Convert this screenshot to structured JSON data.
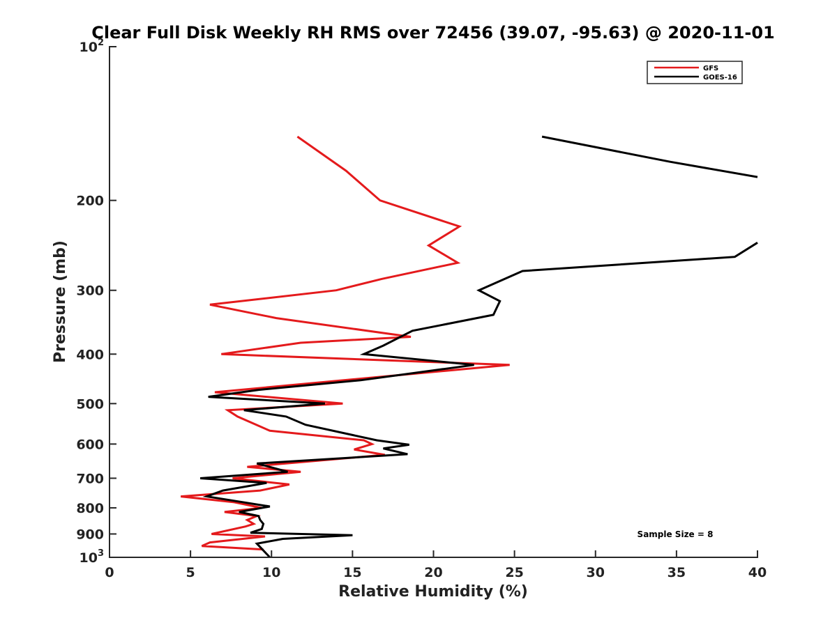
{
  "chart_data": {
    "type": "line",
    "title": "Clear Full Disk Weekly RH RMS over 72456 (39.07, -95.63) @ 2020-11-01",
    "xlabel": "Relative Humidity (%)",
    "ylabel": "Pressure (mb)",
    "xlim": [
      0,
      40
    ],
    "ylim": [
      100,
      1000
    ],
    "yscale": "log",
    "y_reversed": true,
    "x_ticks": [
      {
        "value": 0,
        "label": "0"
      },
      {
        "value": 5,
        "label": "5"
      },
      {
        "value": 10,
        "label": "10"
      },
      {
        "value": 15,
        "label": "15"
      },
      {
        "value": 20,
        "label": "20"
      },
      {
        "value": 25,
        "label": "25"
      },
      {
        "value": 30,
        "label": "30"
      },
      {
        "value": 35,
        "label": "35"
      },
      {
        "value": 40,
        "label": "40"
      }
    ],
    "y_ticks": [
      {
        "value": 100,
        "label": "10",
        "exp": "2"
      },
      {
        "value": 200,
        "label": "200"
      },
      {
        "value": 300,
        "label": "300"
      },
      {
        "value": 400,
        "label": "400"
      },
      {
        "value": 500,
        "label": "500"
      },
      {
        "value": 600,
        "label": "600"
      },
      {
        "value": 700,
        "label": "700"
      },
      {
        "value": 800,
        "label": "800"
      },
      {
        "value": 900,
        "label": "900"
      },
      {
        "value": 1000,
        "label": "10",
        "exp": "3"
      }
    ],
    "legend_position": "top-right",
    "series": [
      {
        "name": "GFS",
        "color": "#e41a1c",
        "points": [
          [
            11.6,
            150
          ],
          [
            14.6,
            175
          ],
          [
            16.7,
            200
          ],
          [
            21.6,
            225
          ],
          [
            19.7,
            245
          ],
          [
            21.5,
            265
          ],
          [
            16.8,
            285
          ],
          [
            14.0,
            300
          ],
          [
            6.2,
            320
          ],
          [
            10.3,
            340
          ],
          [
            18.6,
            370
          ],
          [
            11.8,
            380
          ],
          [
            6.9,
            400
          ],
          [
            24.7,
            420
          ],
          [
            16.1,
            445
          ],
          [
            6.5,
            475
          ],
          [
            14.4,
            500
          ],
          [
            7.3,
            515
          ],
          [
            7.9,
            530
          ],
          [
            9.9,
            565
          ],
          [
            15.7,
            590
          ],
          [
            16.2,
            600
          ],
          [
            15.1,
            615
          ],
          [
            17.0,
            630
          ],
          [
            8.5,
            665
          ],
          [
            11.8,
            680
          ],
          [
            7.6,
            700
          ],
          [
            11.1,
            720
          ],
          [
            9.3,
            740
          ],
          [
            4.4,
            760
          ],
          [
            7.7,
            780
          ],
          [
            9.4,
            800
          ],
          [
            7.1,
            815
          ],
          [
            9.1,
            830
          ],
          [
            8.5,
            845
          ],
          [
            8.9,
            860
          ],
          [
            8.4,
            870
          ],
          [
            6.3,
            900
          ],
          [
            9.6,
            910
          ],
          [
            6.2,
            935
          ],
          [
            5.7,
            950
          ],
          [
            9.5,
            965
          ]
        ]
      },
      {
        "name": "GOES-16",
        "color": "#000000",
        "points": [
          [
            26.7,
            150
          ],
          [
            34.6,
            168
          ],
          [
            40.0,
            180
          ],
          [
            null,
            null
          ],
          [
            40.0,
            242
          ],
          [
            38.6,
            258
          ],
          [
            25.5,
            275
          ],
          [
            22.8,
            300
          ],
          [
            24.1,
            315
          ],
          [
            23.7,
            335
          ],
          [
            18.7,
            360
          ],
          [
            16.9,
            385
          ],
          [
            15.7,
            400
          ],
          [
            22.5,
            420
          ],
          [
            15.5,
            450
          ],
          [
            9.2,
            470
          ],
          [
            6.1,
            485
          ],
          [
            13.3,
            500
          ],
          [
            8.3,
            515
          ],
          [
            10.9,
            530
          ],
          [
            12.1,
            550
          ],
          [
            16.5,
            590
          ],
          [
            18.5,
            602
          ],
          [
            16.9,
            612
          ],
          [
            18.4,
            628
          ],
          [
            9.1,
            655
          ],
          [
            11.0,
            680
          ],
          [
            5.6,
            700
          ],
          [
            9.7,
            715
          ],
          [
            7.0,
            740
          ],
          [
            6.0,
            760
          ],
          [
            9.9,
            795
          ],
          [
            8.0,
            815
          ],
          [
            9.2,
            830
          ],
          [
            9.3,
            845
          ],
          [
            9.5,
            860
          ],
          [
            9.4,
            880
          ],
          [
            8.7,
            895
          ],
          [
            15.0,
            905
          ],
          [
            10.7,
            920
          ],
          [
            9.1,
            940
          ],
          [
            9.9,
            1000
          ]
        ]
      }
    ],
    "annotation": "Sample Size = 8"
  }
}
